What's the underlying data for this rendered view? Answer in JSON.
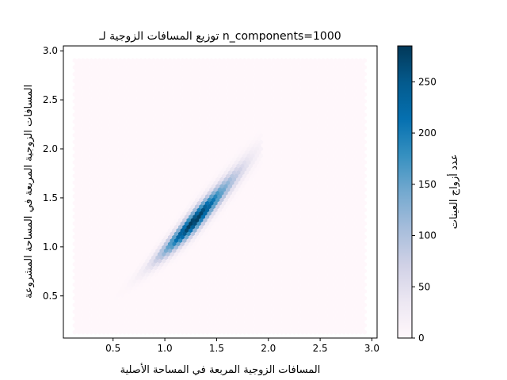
{
  "chart_data": {
    "type": "heatmap",
    "subtype": "hexbin",
    "title": "توزيع المسافات الزوجية لـ n_components=1000",
    "xlabel": "المسافات الزوجية المربعة في المساحة الأصلية",
    "ylabel": "المسافات الزوجية المربعة في المساحة المشروعة",
    "xlim": [
      0.02,
      3.05
    ],
    "ylim": [
      0.07,
      3.05
    ],
    "x_ticks": [
      "0.5",
      "1.0",
      "1.5",
      "2.0",
      "2.5",
      "3.0"
    ],
    "y_ticks": [
      "0.5",
      "1.0",
      "1.5",
      "2.0",
      "2.5",
      "3.0"
    ],
    "grid": false,
    "colormap": "PuBu",
    "colormap_stops": [
      "#fff7fb",
      "#ece7f2",
      "#d0d1e6",
      "#a6bddb",
      "#74a9cf",
      "#3690c0",
      "#0570b0",
      "#045a8d",
      "#023858"
    ],
    "extent": {
      "x": [
        0.13,
        2.93
      ],
      "y": [
        0.13,
        2.93
      ]
    },
    "density": {
      "ridge_x_range": [
        0.38,
        1.85
      ],
      "ridge_y_at_start": 0.36,
      "ridge_y_at_end": 1.92,
      "ridge_curvature": 0.12,
      "peak_x": 1.28,
      "peak_count": 285
    },
    "colorbar": {
      "label": "عدد أزواج العينات",
      "range": [
        0,
        285
      ],
      "ticks": [
        "0",
        "50",
        "100",
        "150",
        "200",
        "250"
      ]
    }
  }
}
